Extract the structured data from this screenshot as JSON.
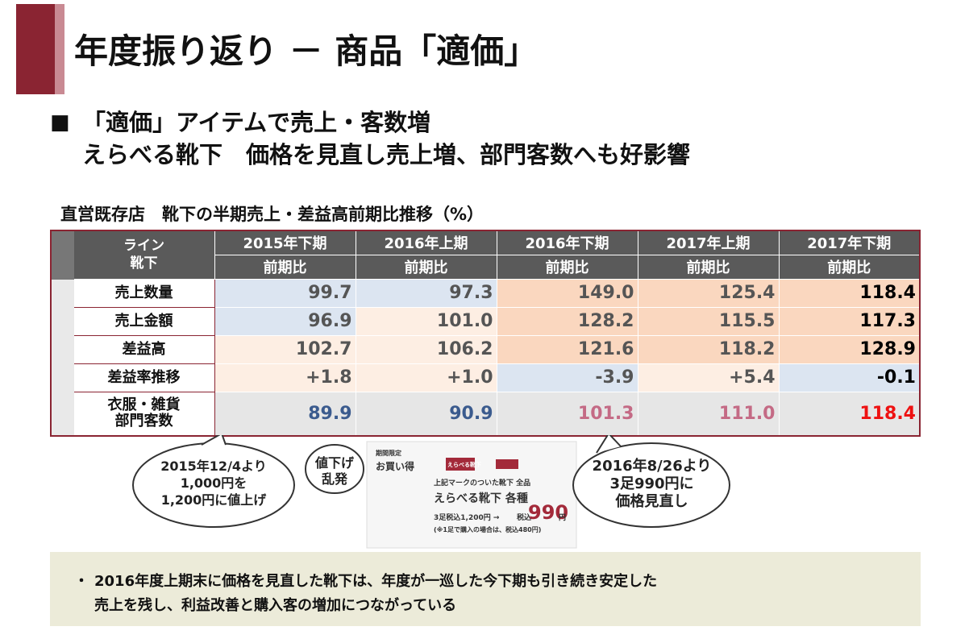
{
  "title": "年度振り返り － 商品「適価」",
  "headline": {
    "bullet": "■",
    "lines": [
      "「適価」アイテムで売上・客数増",
      "えらべる靴下　価格を見直し売上増、部門客数へも好影響"
    ]
  },
  "table": {
    "caption": "直営既存店　靴下の半期売上・差益高前期比推移（%）",
    "corner": [
      "ライン",
      "靴下"
    ],
    "columns": [
      "2015年下期",
      "2016年上期",
      "2016年下期",
      "2017年上期",
      "2017年下期"
    ],
    "subheaders": [
      "前期比",
      "前期比",
      "前期比",
      "前期比",
      "前期比"
    ],
    "rows": [
      {
        "label": [
          "売上数量"
        ],
        "values": [
          "99.7",
          "97.3",
          "149.0",
          "125.4",
          "118.4"
        ]
      },
      {
        "label": [
          "売上金額"
        ],
        "values": [
          "96.9",
          "101.0",
          "128.2",
          "115.5",
          "117.3"
        ]
      },
      {
        "label": [
          "差益高"
        ],
        "values": [
          "102.7",
          "106.2",
          "121.6",
          "118.2",
          "128.9"
        ]
      },
      {
        "label": [
          "差益率推移"
        ],
        "values": [
          "+1.8",
          "+1.0",
          "-3.9",
          "+5.4",
          "-0.1"
        ]
      },
      {
        "label": [
          "衣服・雑貨",
          "部門客数"
        ],
        "values": [
          "89.9",
          "90.9",
          "101.3",
          "111.0",
          "118.4"
        ]
      }
    ]
  },
  "callouts": [
    {
      "lines": [
        "2015年12/4より",
        "1,000円を",
        "1,200円に値上げ"
      ]
    },
    {
      "lines": [
        "値下げ",
        "乱発"
      ]
    },
    {
      "lines": [
        "2016年8/26より",
        "3足990円に",
        "価格見直し"
      ]
    }
  ],
  "flyer": {
    "tag": [
      "期間限定",
      "お買い得"
    ],
    "badge": "えらべる靴下",
    "intro": "上記マークのついた靴下 全品",
    "product": "えらべる靴下 各種",
    "price_before": "3足税込1,200円 →",
    "price_label": "税込",
    "price": "990",
    "unit": "円",
    "note": "(※1足で購入の場合は、税込480円)"
  },
  "note": {
    "bullet": "・",
    "lines": [
      "2016年度上期末に価格を見直した靴下は、年度が一巡した今下期も引き続き安定した",
      "売上を残し、利益改善と購入客の増加につながっている"
    ]
  }
}
